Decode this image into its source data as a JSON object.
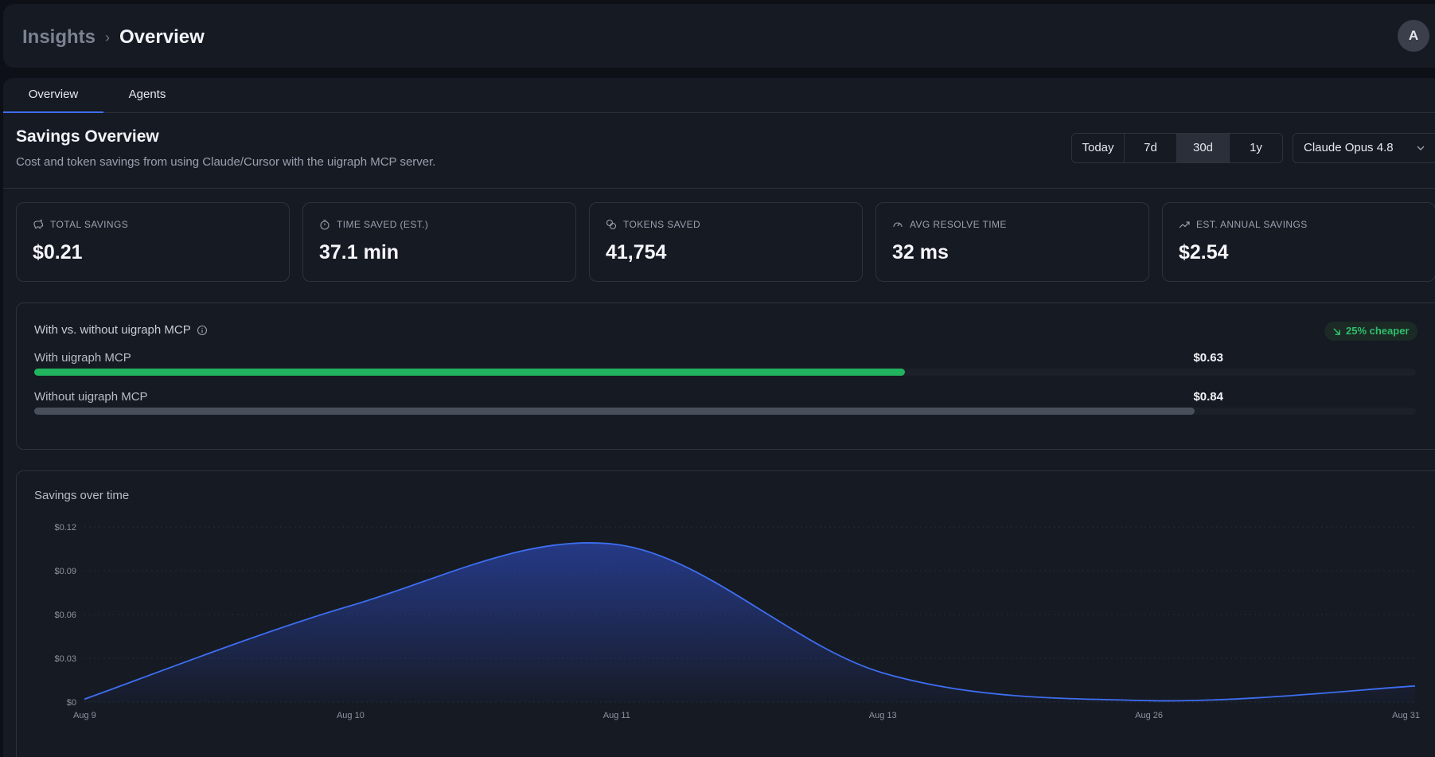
{
  "header": {
    "breadcrumb_root": "Insights",
    "breadcrumb_separator": "›",
    "breadcrumb_current": "Overview",
    "avatar_initial": "A"
  },
  "tabs": [
    {
      "label": "Overview",
      "active": true
    },
    {
      "label": "Agents",
      "active": false
    }
  ],
  "section": {
    "title": "Savings Overview",
    "subtitle": "Cost and token savings from using Claude/Cursor with the uigraph MCP server."
  },
  "range": {
    "options": [
      "Today",
      "7d",
      "30d",
      "1y"
    ],
    "selected": "30d"
  },
  "model_select": {
    "value": "Claude Opus 4.8",
    "icon": "chevron-down-icon"
  },
  "stats": [
    {
      "label": "TOTAL SAVINGS",
      "value": "$0.21",
      "icon": "piggy-bank-icon"
    },
    {
      "label": "TIME SAVED (EST.)",
      "value": "37.1 min",
      "icon": "stopwatch-icon"
    },
    {
      "label": "TOKENS SAVED",
      "value": "41,754",
      "icon": "coins-icon"
    },
    {
      "label": "AVG RESOLVE TIME",
      "value": "32 ms",
      "icon": "gauge-icon"
    },
    {
      "label": "EST. ANNUAL SAVINGS",
      "value": "$2.54",
      "icon": "trending-up-icon"
    }
  ],
  "comparison": {
    "title": "With vs. without uigraph MCP",
    "info_icon": "info-icon",
    "badge": "25% cheaper",
    "badge_icon": "arrow-down-right-icon",
    "bars": [
      {
        "label": "With uigraph MCP",
        "value": "$0.63",
        "fraction": 0.63,
        "color": "#22b35e"
      },
      {
        "label": "Without uigraph MCP",
        "value": "$0.84",
        "fraction": 0.84,
        "color": "#4a4f5c"
      }
    ],
    "scale_max": 1.0
  },
  "chart_data": {
    "type": "area",
    "title": "Savings over time",
    "categories": [
      "Aug 9",
      "Aug 10",
      "Aug 11",
      "Aug 13",
      "Aug 26",
      "Aug 31"
    ],
    "series": [
      {
        "values": [
          0.002,
          0.066,
          0.108,
          0.02,
          0.001,
          0.011
        ],
        "color": "#3d6ef0"
      }
    ],
    "y_ticks": [
      "$0",
      "$0.03",
      "$0.06",
      "$0.09",
      "$0.12"
    ],
    "y_tick_values": [
      0,
      0.03,
      0.06,
      0.09,
      0.12
    ],
    "ylim": [
      0,
      0.12
    ],
    "grid": true
  }
}
